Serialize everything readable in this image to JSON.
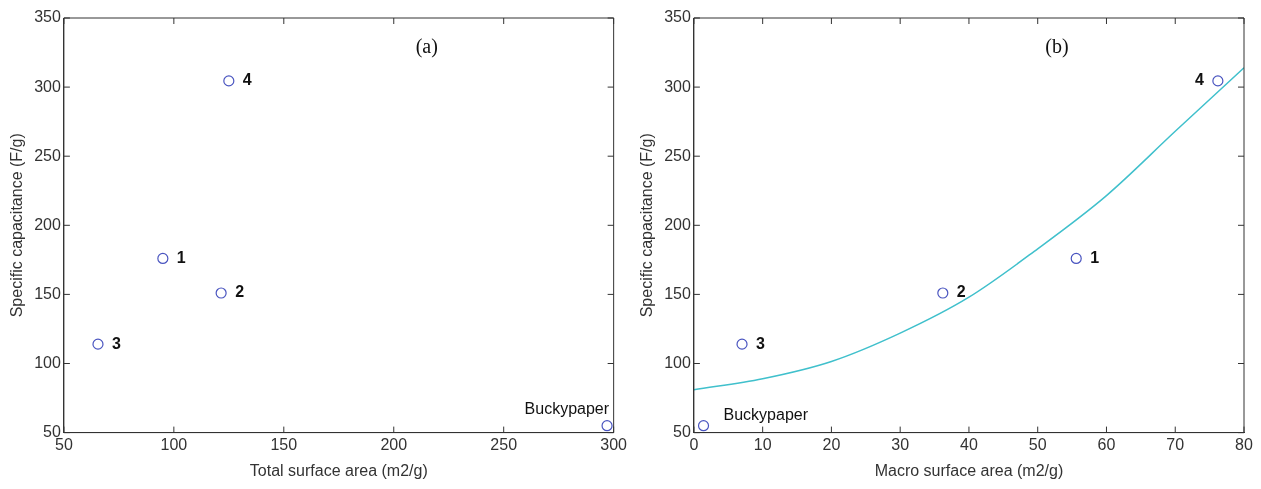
{
  "chart_data": [
    {
      "type": "scatter",
      "xlabel": "Total surface area (m2/g)",
      "ylabel": "Specific capacitance (F/g)",
      "annotations": [
        "(a)",
        {
          "text": "1",
          "x": 95,
          "y": 176
        },
        {
          "text": "2",
          "x": 121.5,
          "y": 151
        },
        {
          "text": "3",
          "x": 65.5,
          "y": 114
        },
        {
          "text": "4",
          "x": 125,
          "y": 304.5
        },
        {
          "text": "Buckypaper",
          "x": 297,
          "y": 55
        }
      ],
      "series": [
        {
          "color": "#4a55c0",
          "marker": "circle",
          "x": [
            95,
            121.5,
            65.5,
            125,
            297
          ],
          "values": [
            176,
            151,
            114,
            304.5,
            55
          ]
        }
      ],
      "xlim": [
        50,
        300
      ],
      "xticks": [
        50,
        100,
        150,
        200,
        250,
        300
      ],
      "ylim": [
        50,
        350
      ],
      "yticks": [
        50,
        100,
        150,
        200,
        250,
        300,
        350
      ],
      "grid": false,
      "legend": false
    },
    {
      "type": "scatter",
      "xlabel": "Macro surface area (m2/g)",
      "ylabel": "Specific capacitance (F/g)",
      "annotations": [
        "(b)",
        {
          "text": "1",
          "x": 55.6,
          "y": 176
        },
        {
          "text": "2",
          "x": 36.2,
          "y": 151
        },
        {
          "text": "3",
          "x": 7,
          "y": 114
        },
        {
          "text": "4",
          "x": 76.2,
          "y": 304.5
        },
        {
          "text": "Buckypaper",
          "x": 1.4,
          "y": 55
        }
      ],
      "series": [
        {
          "color": "#4a55c0",
          "marker": "circle",
          "x": [
            55.6,
            36.2,
            7,
            76.2,
            1.4
          ],
          "values": [
            176,
            151,
            114,
            304.5,
            55
          ]
        },
        {
          "type": "line",
          "color": "#40c0cc",
          "marker": "none",
          "x": [
            0,
            10,
            20,
            30,
            40,
            50,
            60,
            70,
            80
          ],
          "values": [
            81,
            89,
            101.5,
            122,
            148,
            183,
            221.5,
            268,
            314
          ]
        }
      ],
      "xlim": [
        0,
        80
      ],
      "xticks": [
        0,
        10,
        20,
        30,
        40,
        50,
        60,
        70,
        80
      ],
      "ylim": [
        50,
        350
      ],
      "yticks": [
        50,
        100,
        150,
        200,
        250,
        300,
        350
      ],
      "grid": false,
      "legend": false
    }
  ]
}
